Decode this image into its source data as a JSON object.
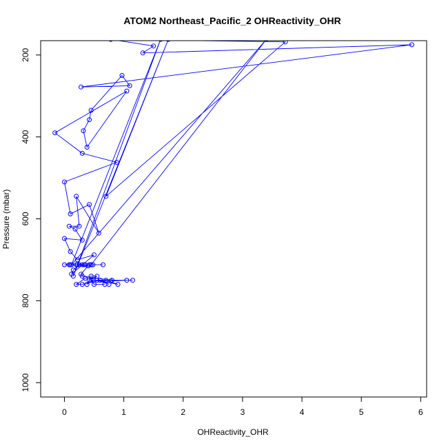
{
  "chart_data": {
    "type": "line",
    "title": "ATOM2 Northeast_Pacific_2 OHReactivity_OHR",
    "xlabel": "OHReactivity_OHR",
    "ylabel": "Pressure (mbar)",
    "xlim": [
      -0.4,
      6.1
    ],
    "ylim": [
      1035,
      165
    ],
    "y_reversed": true,
    "x_ticks": [
      0,
      1,
      2,
      3,
      4,
      5,
      6
    ],
    "y_ticks": [
      200,
      400,
      600,
      800,
      1000
    ],
    "grid": false,
    "line_color": "#0000ff",
    "marker": "open-circle",
    "series": [
      {
        "points": [
          [
            0.68,
            760
          ],
          [
            0.5,
            760
          ],
          [
            0.45,
            750
          ],
          [
            0.7,
            750
          ],
          [
            0.9,
            760
          ],
          [
            0.55,
            750
          ],
          [
            0.75,
            760
          ],
          [
            0.6,
            750
          ],
          [
            0.3,
            760
          ],
          [
            0.2,
            760
          ],
          [
            0.35,
            745
          ],
          [
            0.45,
            740
          ],
          [
            0.55,
            740
          ],
          [
            0.42,
            750
          ],
          [
            0.38,
            760
          ],
          [
            0.48,
            750
          ],
          [
            0.78,
            752
          ],
          [
            1.05,
            750
          ],
          [
            1.15,
            750
          ],
          [
            0.8,
            750
          ],
          [
            0.3,
            740
          ],
          [
            0.28,
            735
          ],
          [
            0.4,
            715
          ],
          [
            0.22,
            712
          ],
          [
            0.35,
            712
          ],
          [
            0.48,
            712
          ],
          [
            0.2,
            712
          ],
          [
            0.65,
            712
          ],
          [
            0.1,
            712
          ],
          [
            0.08,
            712
          ],
          [
            0.3,
            712
          ],
          [
            0.45,
            712
          ],
          [
            0.33,
            712
          ],
          [
            0.42,
            712
          ],
          [
            0.0,
            712
          ],
          [
            0.25,
            712
          ],
          [
            0.15,
            725
          ],
          [
            0.12,
            735
          ],
          [
            0.5,
            688
          ],
          [
            0.22,
            700
          ],
          [
            0.1,
            680
          ],
          [
            0.0,
            648
          ],
          [
            0.3,
            652
          ],
          [
            0.18,
            625
          ],
          [
            0.08,
            618
          ],
          [
            0.25,
            618
          ],
          [
            0.2,
            545
          ],
          [
            0.58,
            635
          ],
          [
            0.42,
            565
          ],
          [
            0.1,
            588
          ],
          [
            0.0,
            510
          ],
          [
            0.88,
            462
          ],
          [
            0.3,
            440
          ],
          [
            -0.16,
            390
          ],
          [
            1.05,
            288
          ],
          [
            0.38,
            425
          ],
          [
            0.32,
            385
          ],
          [
            0.42,
            358
          ],
          [
            0.45,
            335
          ],
          [
            0.97,
            250
          ],
          [
            1.1,
            275
          ],
          [
            0.28,
            278
          ],
          [
            5.85,
            175
          ],
          [
            1.32,
            195
          ],
          [
            1.5,
            178
          ],
          [
            0.78,
            162
          ],
          [
            3.72,
            168
          ],
          [
            0.7,
            545
          ],
          [
            1.75,
            162
          ],
          [
            0.15,
            740
          ],
          [
            1.62,
            162
          ],
          [
            0.12,
            712
          ],
          [
            3.4,
            162
          ],
          [
            0.45,
            712
          ]
        ]
      }
    ]
  }
}
